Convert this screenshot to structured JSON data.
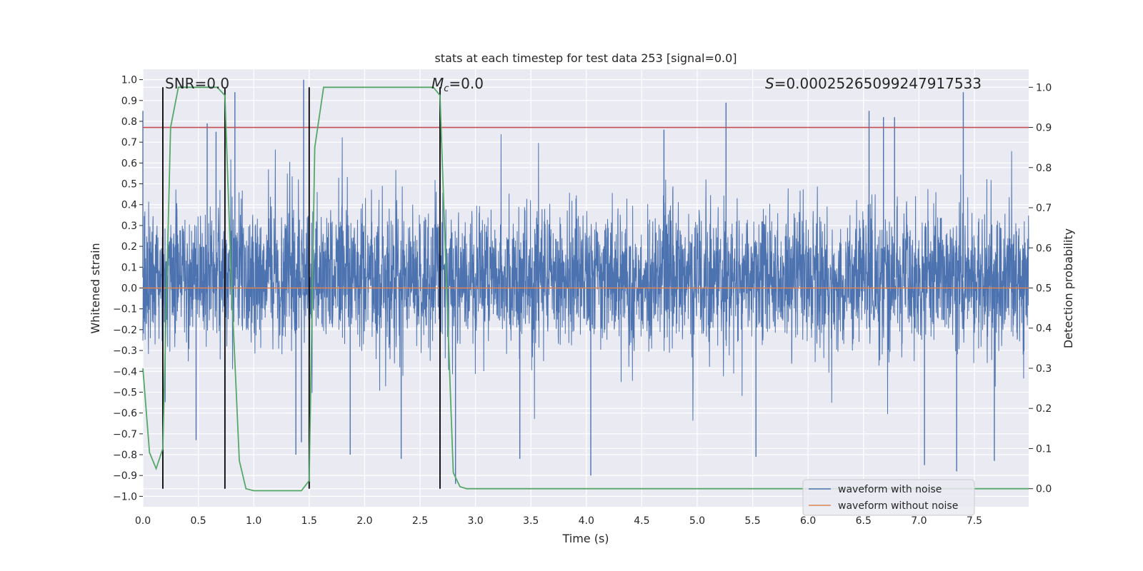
{
  "chart_data": {
    "type": "line",
    "title": "stats at each timestep for test data 253 [signal=0.0]",
    "xlabel": "Time (s)",
    "ylabel": "Whitened strain",
    "y2label": "Detection probability",
    "xlim": [
      0.0,
      7.99
    ],
    "ylim": [
      -1.05,
      1.05
    ],
    "y2lim": [
      -0.045,
      1.045
    ],
    "x_ticks": [
      "0.0",
      "0.5",
      "1.0",
      "1.5",
      "2.0",
      "2.5",
      "3.0",
      "3.5",
      "4.0",
      "4.5",
      "5.0",
      "5.5",
      "6.0",
      "6.5",
      "7.0",
      "7.5"
    ],
    "y_ticks": [
      "1.0",
      "0.9",
      "0.8",
      "0.7",
      "0.6",
      "0.5",
      "0.4",
      "0.3",
      "0.2",
      "0.1",
      "0.0",
      "−0.1",
      "−0.2",
      "−0.3",
      "−0.4",
      "−0.5",
      "−0.6",
      "−0.7",
      "−0.8",
      "−0.9",
      "−1.0"
    ],
    "y2_ticks": [
      "1.0",
      "0.9",
      "0.8",
      "0.7",
      "0.6",
      "0.5",
      "0.4",
      "0.3",
      "0.2",
      "0.1",
      "0.0"
    ],
    "annotations": {
      "snr": "SNR=0.0",
      "mc_symbol": "M",
      "mc_sub": "c",
      "mc_value": "=0.0",
      "s_symbol": "S",
      "s_value": "=0.00025265099247917533"
    },
    "legend": {
      "location": "lower right",
      "entries": [
        {
          "label": "waveform with noise",
          "color": "#4c72b0"
        },
        {
          "label": "waveform without noise",
          "color": "#dd8452"
        }
      ]
    },
    "colors": {
      "noise": "#4c72b0",
      "clean": "#dd8452",
      "probability": "#55a868",
      "threshold": "#c44e52",
      "marker": "#000000",
      "background": "#eaeaf2",
      "grid": "#ffffff"
    },
    "threshold": 0.9,
    "clean_waveform_level": 0.0,
    "vertical_markers": [
      0.18,
      0.74,
      1.5,
      2.68
    ],
    "noise_envelope": {
      "typical_min": -0.45,
      "typical_max": 0.55
    },
    "noise_spikes": [
      {
        "t": 0.0,
        "v": 0.85
      },
      {
        "t": 0.48,
        "v": -0.73
      },
      {
        "t": 0.58,
        "v": 0.79
      },
      {
        "t": 0.66,
        "v": 0.75
      },
      {
        "t": 0.74,
        "v": -0.82
      },
      {
        "t": 0.83,
        "v": 0.94
      },
      {
        "t": 1.45,
        "v": 1.0
      },
      {
        "t": 1.43,
        "v": -0.74
      },
      {
        "t": 1.38,
        "v": -0.8
      },
      {
        "t": 1.87,
        "v": -0.8
      },
      {
        "t": 2.33,
        "v": -0.82
      },
      {
        "t": 2.82,
        "v": -0.94
      },
      {
        "t": 3.4,
        "v": -0.82
      },
      {
        "t": 4.04,
        "v": -0.9
      },
      {
        "t": 4.7,
        "v": 0.76
      },
      {
        "t": 5.26,
        "v": 0.89
      },
      {
        "t": 5.53,
        "v": -0.81
      },
      {
        "t": 6.55,
        "v": 0.85
      },
      {
        "t": 6.68,
        "v": 0.82
      },
      {
        "t": 6.78,
        "v": 0.82
      },
      {
        "t": 7.4,
        "v": 0.94
      },
      {
        "t": 7.34,
        "v": -0.88
      },
      {
        "t": 7.05,
        "v": -0.85
      },
      {
        "t": 7.68,
        "v": -0.83
      }
    ],
    "detection_probability": {
      "t": [
        0.0,
        0.06,
        0.12,
        0.18,
        0.25,
        0.32,
        0.42,
        0.55,
        0.67,
        0.74,
        0.8,
        0.87,
        0.93,
        1.0,
        1.2,
        1.43,
        1.5,
        1.55,
        1.63,
        1.75,
        2.0,
        2.4,
        2.62,
        2.68,
        2.74,
        2.8,
        2.86,
        2.92,
        3.2,
        5.0,
        7.99
      ],
      "p": [
        0.3,
        0.09,
        0.05,
        0.1,
        0.9,
        1.0,
        1.0,
        1.0,
        1.0,
        0.98,
        0.5,
        0.07,
        0.0,
        -0.005,
        -0.005,
        -0.005,
        0.02,
        0.85,
        1.0,
        1.0,
        1.0,
        1.0,
        1.0,
        0.98,
        0.5,
        0.04,
        0.005,
        0.0,
        0.0,
        0.0,
        0.0
      ]
    }
  }
}
